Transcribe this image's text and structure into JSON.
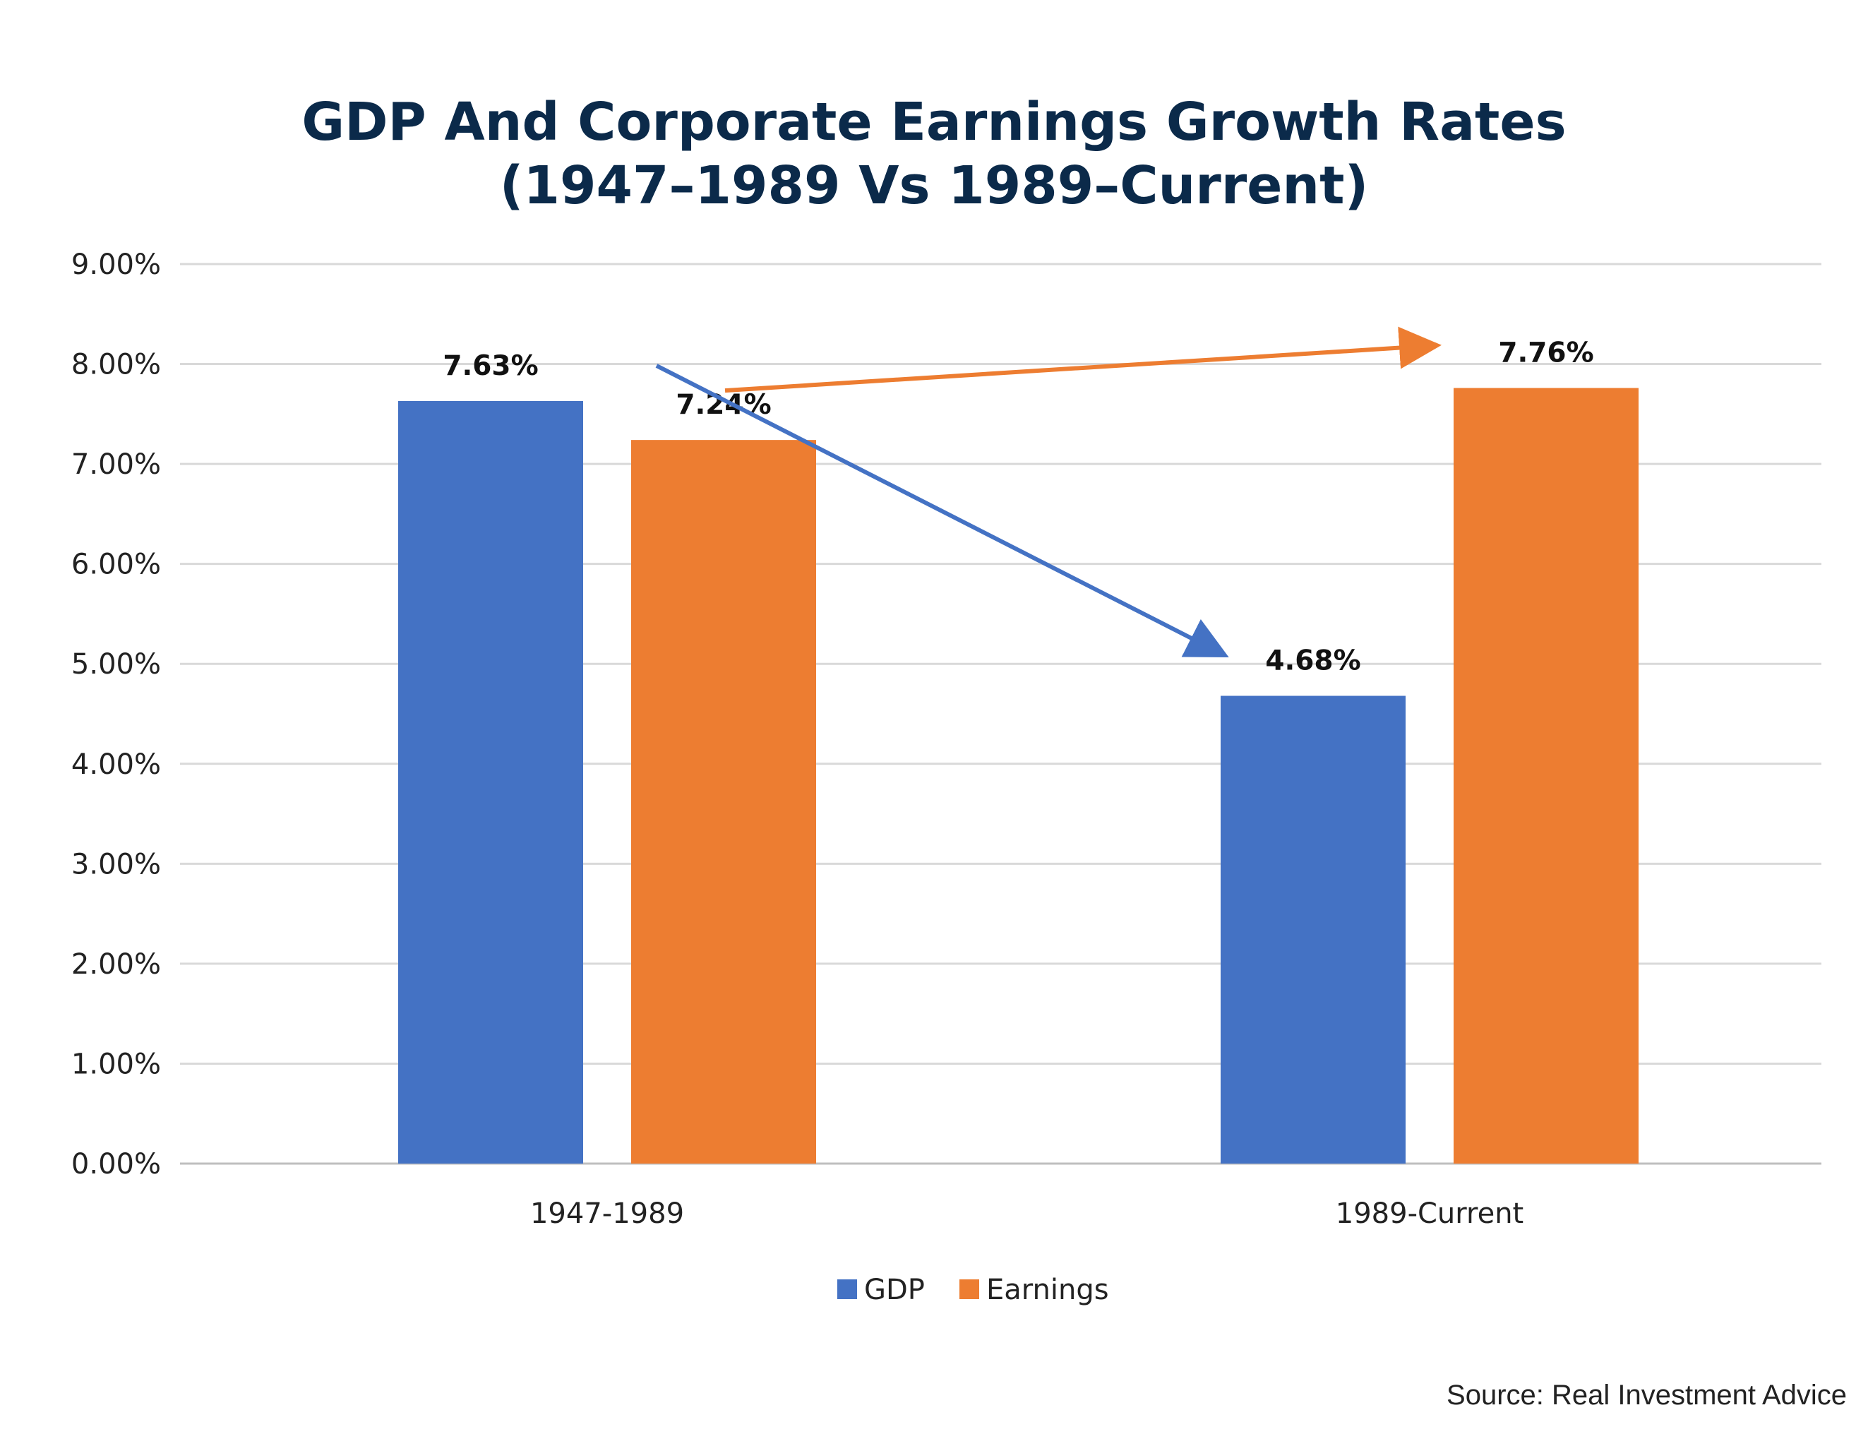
{
  "chart_data": {
    "type": "bar",
    "title": "GDP And Corporate Earnings Growth Rates",
    "subtitle": "(1947–1989 Vs 1989–Current)",
    "categories": [
      "1947-1989",
      "1989-Current"
    ],
    "series": [
      {
        "name": "GDP",
        "values": [
          7.63,
          4.68
        ],
        "color": "#4472c4"
      },
      {
        "name": "Earnings",
        "values": [
          7.24,
          7.76
        ],
        "color": "#ed7d31"
      }
    ],
    "data_labels": [
      [
        "7.63%",
        "4.68%"
      ],
      [
        "7.24%",
        "7.76%"
      ]
    ],
    "yticks": [
      "0.00%",
      "1.00%",
      "2.00%",
      "3.00%",
      "4.00%",
      "5.00%",
      "6.00%",
      "7.00%",
      "8.00%",
      "9.00%"
    ],
    "ylim": [
      0,
      9
    ],
    "grid": true,
    "legend_position": "bottom",
    "annotations": [
      {
        "type": "arrow",
        "series": "GDP",
        "from_category": "1947-1989",
        "to_category": "1989-Current",
        "color": "#4472c4"
      },
      {
        "type": "arrow",
        "series": "Earnings",
        "from_category": "1947-1989",
        "to_category": "1989-Current",
        "color": "#ed7d31"
      }
    ],
    "source": "Source: Real Investment Advice"
  }
}
